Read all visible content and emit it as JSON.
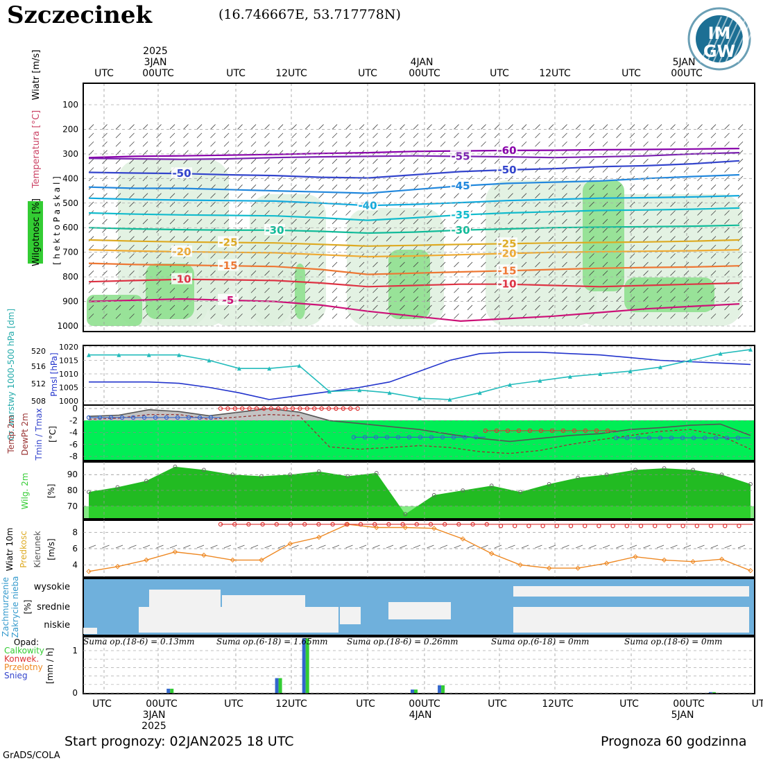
{
  "header": {
    "station": "Szczecinek",
    "coordinates": "(16.746667E, 53.717778N)",
    "logo_text_top": "IM",
    "logo_text_bottom": "GW",
    "logo_ring_text": "INSTYTUT METEOROLOGII I GOSPODARKI WODNEJ"
  },
  "time_axis": {
    "top_labels": [
      "UTC",
      "00UTC",
      "UTC",
      "12UTC",
      "UTC",
      "00UTC",
      "UTC",
      "12UTC",
      "UTC",
      "00UTC"
    ],
    "top_date_labels": [
      {
        "year": "2025",
        "day": "3JAN"
      },
      {
        "year": "",
        "day": "4JAN"
      },
      {
        "year": "",
        "day": "5JAN"
      }
    ],
    "bottom_labels": [
      "UTC",
      "00UTC",
      "UTC",
      "12UTC",
      "UTC",
      "00UTC",
      "UTC",
      "12UTC",
      "UTC",
      "00UTC",
      "UT"
    ],
    "bottom_date_labels": [
      {
        "day": "3JAN",
        "year": "2025"
      },
      {
        "day": "4JAN",
        "year": ""
      },
      {
        "day": "5JAN",
        "year": ""
      }
    ]
  },
  "footer": {
    "start": "Start prognozy: 02JAN2025 18 UTC",
    "forecast": "Prognoza 60 godzinna",
    "credit": "GrADS/COLA"
  },
  "colors": {
    "frame": "#000000",
    "humidity_green": "#8fe08f",
    "temp_green": "#00ee55",
    "humid_2m_green": "#22bb22",
    "cloud_blue": "#6fb0dc",
    "cloud_white": "#f2f2f2",
    "precip_green": "#33cc33",
    "precip_blue": "#3366cc"
  },
  "chart_data": [
    {
      "type": "heatmap",
      "panel": "upper-air",
      "y_title_left": [
        "Wiatr [m/s]",
        "Temperatura [°C]",
        "Wilgotnosc [%]"
      ],
      "y_title_inner": "[ h e k t o P a s k a l ]",
      "ylim": [
        1050,
        50
      ],
      "yticks": [
        100,
        200,
        300,
        400,
        500,
        600,
        700,
        800,
        900,
        1000
      ],
      "isotherms": [
        {
          "label": "-60",
          "color": "#8800aa",
          "level": [
            315,
            310,
            308,
            305,
            302,
            298,
            295,
            290,
            288,
            286,
            285,
            283,
            282,
            280,
            278
          ]
        },
        {
          "label": "-55",
          "color": "#7a20b0",
          "level": [
            318,
            320,
            322,
            320,
            315,
            312,
            310,
            308,
            310,
            312,
            315,
            312,
            308,
            300,
            295
          ]
        },
        {
          "label": "-50",
          "color": "#3344cc",
          "level": [
            375,
            378,
            380,
            385,
            388,
            395,
            398,
            385,
            372,
            365,
            360,
            352,
            348,
            340,
            328
          ]
        },
        {
          "label": "-45",
          "color": "#2288dd",
          "level": [
            435,
            440,
            440,
            445,
            450,
            455,
            460,
            445,
            430,
            420,
            415,
            410,
            400,
            392,
            385
          ]
        },
        {
          "label": "-40",
          "color": "#11aadd",
          "level": [
            480,
            485,
            488,
            490,
            492,
            500,
            510,
            505,
            498,
            490,
            485,
            480,
            478,
            475,
            470
          ]
        },
        {
          "label": "-35",
          "color": "#11bbcc",
          "level": [
            540,
            545,
            548,
            550,
            552,
            560,
            570,
            560,
            548,
            540,
            535,
            530,
            528,
            525,
            520
          ]
        },
        {
          "label": "-30",
          "color": "#11bb99",
          "level": [
            600,
            605,
            608,
            610,
            610,
            615,
            622,
            618,
            610,
            605,
            600,
            598,
            596,
            594,
            590
          ]
        },
        {
          "label": "-25",
          "color": "#ddaa22",
          "level": [
            650,
            655,
            658,
            660,
            662,
            668,
            675,
            672,
            668,
            665,
            662,
            660,
            658,
            655,
            650
          ]
        },
        {
          "label": "-20",
          "color": "#eeaa33",
          "level": [
            690,
            695,
            698,
            700,
            702,
            710,
            718,
            715,
            710,
            705,
            700,
            698,
            696,
            694,
            690
          ]
        },
        {
          "label": "-15",
          "color": "#ee7733",
          "level": [
            745,
            750,
            752,
            755,
            758,
            770,
            790,
            785,
            780,
            775,
            770,
            765,
            762,
            760,
            755
          ]
        },
        {
          "label": "-10",
          "color": "#dd3344",
          "level": [
            820,
            815,
            810,
            812,
            815,
            825,
            840,
            835,
            830,
            830,
            835,
            840,
            835,
            830,
            825
          ]
        },
        {
          "label": "-5",
          "color": "#cc1177",
          "level": [
            900,
            895,
            890,
            895,
            900,
            915,
            940,
            960,
            980,
            970,
            960,
            945,
            930,
            920,
            910
          ]
        }
      ]
    },
    {
      "type": "line",
      "panel": "pressure",
      "y_title": [
        "Gr. warstwy 1000-500 hPa [dm]",
        "Pmsl [hPa]"
      ],
      "left_ticks": [
        508,
        512,
        516,
        520
      ],
      "right_ticks": [
        1000,
        1005,
        1010,
        1015,
        1020
      ],
      "series": [
        {
          "name": "Pmsl",
          "color": "#2233cc",
          "values": [
            1007,
            1007,
            1007,
            1006.5,
            1005,
            1003,
            1000.5,
            1002,
            1003.5,
            1005,
            1007,
            1011,
            1015,
            1017.5,
            1018,
            1018,
            1017.5,
            1017,
            1016,
            1015,
            1014.5,
            1014,
            1013.5
          ]
        },
        {
          "name": "Gr. warstwy",
          "color": "#22bbbb",
          "values": [
            1017,
            1017,
            1017,
            1017,
            1015,
            1012,
            1012,
            1013,
            1003.5,
            1004,
            1003,
            1001,
            1000.5,
            1003,
            1006,
            1007.5,
            1009,
            1010,
            1011,
            1012.5,
            1015,
            1017.5,
            1019
          ]
        }
      ]
    },
    {
      "type": "area",
      "panel": "temperature-2m",
      "y_title": [
        "Temp 2m",
        "DewPt 2m",
        "Tmin / Tmax",
        "[°C]"
      ],
      "yticks": [
        0,
        -2,
        -4,
        -6,
        -8
      ],
      "ylim": [
        -8.5,
        0.3
      ],
      "series": [
        {
          "name": "Temp 2m",
          "values": [
            -1.3,
            -1.1,
            -0.2,
            -0.5,
            -1.2,
            -0.6,
            0,
            -0.6,
            -2.0,
            -2.5,
            -3.0,
            -3.5,
            -4.3,
            -5.0,
            -5.5,
            -5.0,
            -4.5,
            -4.2,
            -3.5,
            -3.2,
            -2.8,
            -2.6,
            -4.5
          ]
        },
        {
          "name": "DewPt 2m",
          "values": [
            -1.8,
            -1.6,
            -1.0,
            -1.0,
            -1.8,
            -1.4,
            -1.0,
            -1.2,
            -6.4,
            -6.8,
            -6.5,
            -6.2,
            -6.5,
            -7.2,
            -7.5,
            -7.0,
            -6.0,
            -5.2,
            -4.5,
            -3.8,
            -3.5,
            -4.5,
            -6.8
          ]
        },
        {
          "name": "Tmax",
          "values": [
            0,
            0,
            0,
            0,
            0,
            0
          ]
        },
        {
          "name": "Tmin",
          "values": [
            -1.5,
            -1.5,
            -1.5,
            -1.6,
            -4.8,
            -4.8,
            -4.8,
            -4.8,
            -4.9,
            -4.9,
            -4.9,
            -4.9,
            -4.9,
            -4.9
          ]
        }
      ]
    },
    {
      "type": "area",
      "panel": "humidity-2m",
      "y_title": [
        "Wilg. 2m",
        "[%]"
      ],
      "yticks": [
        70,
        80,
        90
      ],
      "ylim": [
        62,
        98
      ],
      "values": [
        79,
        82,
        86,
        95,
        93,
        90,
        89,
        90,
        92,
        89,
        91,
        65,
        77,
        80,
        83,
        79,
        84,
        88,
        90,
        93,
        94,
        93,
        90,
        84
      ]
    },
    {
      "type": "line",
      "panel": "wind-10m",
      "y_title": [
        "Wiatr 10m",
        "Predkosc",
        "Kierunek",
        "[m/s]"
      ],
      "yticks": [
        4,
        6,
        8
      ],
      "ylim": [
        2.5,
        9.5
      ],
      "series": [
        {
          "name": "Predkosc",
          "color": "#ee8822",
          "values": [
            3.2,
            3.8,
            4.6,
            5.6,
            5.2,
            4.6,
            4.6,
            6.6,
            7.4,
            9,
            8.6,
            8.6,
            8.5,
            7.2,
            5.4,
            4,
            3.6,
            3.6,
            4.2,
            5,
            4.6,
            4.4,
            4.7,
            3.3
          ]
        },
        {
          "name": "Max",
          "color": "#dd4444",
          "values": [
            9,
            9,
            9,
            9,
            9,
            9,
            9,
            9,
            9,
            8.8,
            8.8,
            8.8,
            8.8,
            8.8
          ]
        }
      ]
    },
    {
      "type": "area",
      "panel": "cloud-cover",
      "y_title": [
        "Zachmurzenie",
        "Zakrycie nieba",
        "[%]"
      ],
      "levels": [
        "wysokie",
        "srednie",
        "niskie"
      ]
    },
    {
      "type": "bar",
      "panel": "precipitation",
      "y_title": [
        "Opad:",
        "Calkowity",
        "Konwek.",
        "Przelotny",
        "Snieg",
        "[mm / h]"
      ],
      "yticks": [
        0,
        0.2,
        0.4,
        0.6,
        0.8,
        1
      ],
      "tick_labels": [
        "0",
        "",
        "",
        "",
        "",
        "1"
      ],
      "ylim": [
        0,
        1.3
      ],
      "sums": [
        "Suma op.(18-6) = 0.13mm",
        "Suma op.(6-18) = 1.65mm",
        "Suma op.(18-6) = 0.26mm",
        "Suma op.(6-18) = 0mm",
        "Suma op.(18-6) = 0mm"
      ],
      "series": [
        {
          "name": "Calkowity",
          "color": "#33cc33",
          "values": [
            {
              "t": 9,
              "v": 0.1
            },
            {
              "t": 21,
              "v": 0.35
            },
            {
              "t": 24,
              "v": 1.3
            },
            {
              "t": 36,
              "v": 0.08
            },
            {
              "t": 39,
              "v": 0.18
            },
            {
              "t": 69,
              "v": 0.02
            }
          ]
        },
        {
          "name": "Snieg",
          "color": "#3366cc",
          "values": [
            {
              "t": 9,
              "v": 0.1
            },
            {
              "t": 21,
              "v": 0.35
            },
            {
              "t": 24,
              "v": 1.3
            },
            {
              "t": 36,
              "v": 0.08
            },
            {
              "t": 39,
              "v": 0.18
            }
          ]
        }
      ]
    }
  ]
}
